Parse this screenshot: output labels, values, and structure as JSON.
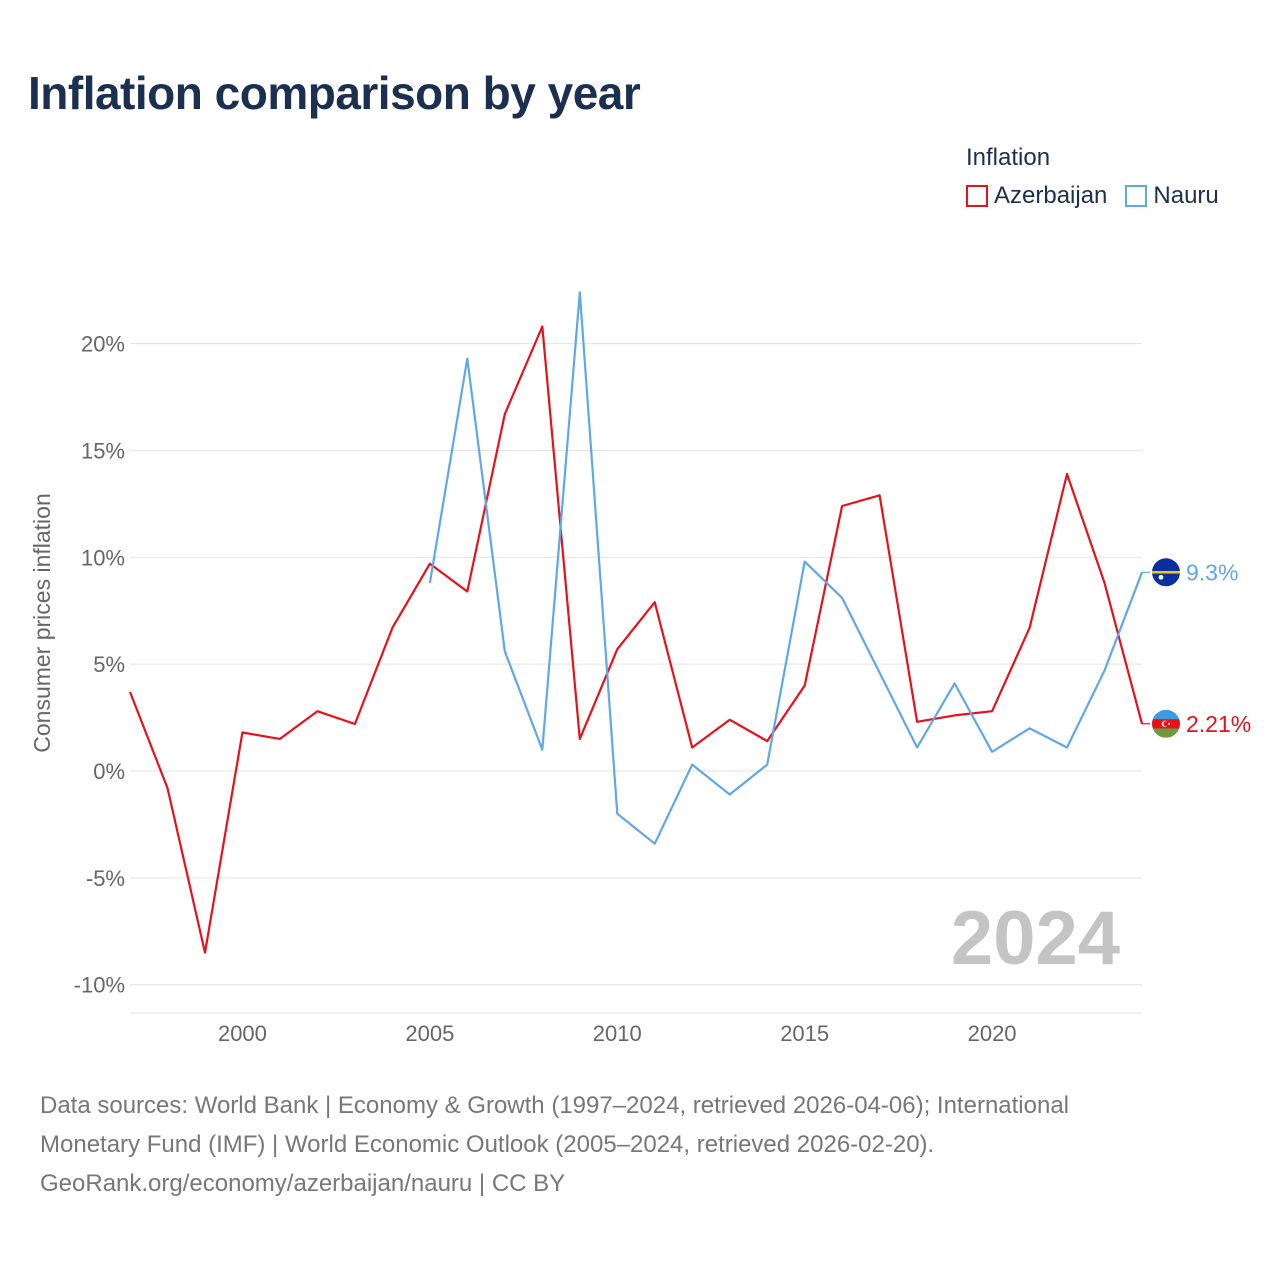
{
  "title": "Inflation comparison by year",
  "legend": {
    "title": "Inflation",
    "items": [
      {
        "label": "Azerbaijan",
        "color": "#e8111a"
      },
      {
        "label": "Nauru",
        "color": "#5fa8e8"
      }
    ]
  },
  "chart_data": {
    "type": "line",
    "ylabel": "Consumer prices inflation",
    "xlabel": "",
    "ylim": [
      -10,
      20
    ],
    "yticks": [
      -10,
      -5,
      0,
      5,
      10,
      15,
      20
    ],
    "ytick_labels": [
      "-10%",
      "-5%",
      "0%",
      "5%",
      "10%",
      "15%",
      "20%"
    ],
    "xlim": [
      1997,
      2024
    ],
    "xticks": [
      2000,
      2005,
      2010,
      2015,
      2020
    ],
    "xtick_labels": [
      "2000",
      "2005",
      "2010",
      "2015",
      "2020"
    ],
    "highlight_year": "2024",
    "series": [
      {
        "name": "Azerbaijan",
        "color": "#e8111a",
        "x": [
          1997,
          1998,
          1999,
          2000,
          2001,
          2002,
          2003,
          2004,
          2005,
          2006,
          2007,
          2008,
          2009,
          2010,
          2011,
          2012,
          2013,
          2014,
          2015,
          2016,
          2017,
          2018,
          2019,
          2020,
          2021,
          2022,
          2023,
          2024
        ],
        "values": [
          3.7,
          -0.8,
          -8.5,
          1.8,
          1.5,
          2.8,
          2.2,
          6.7,
          9.7,
          8.4,
          16.7,
          20.8,
          1.5,
          5.7,
          7.9,
          1.1,
          2.4,
          1.4,
          4.0,
          12.4,
          12.9,
          2.3,
          2.6,
          2.8,
          6.7,
          13.9,
          8.8,
          2.21
        ],
        "end_label": "2.21%"
      },
      {
        "name": "Nauru",
        "color": "#5fa8e8",
        "x": [
          2005,
          2006,
          2007,
          2008,
          2009,
          2010,
          2011,
          2012,
          2013,
          2014,
          2015,
          2016,
          2017,
          2018,
          2019,
          2020,
          2021,
          2022,
          2023,
          2024
        ],
        "values": [
          8.8,
          19.3,
          5.6,
          1.0,
          22.4,
          -2.0,
          -3.4,
          0.3,
          -1.1,
          0.3,
          9.8,
          8.1,
          4.6,
          1.1,
          4.1,
          0.9,
          2.0,
          1.1,
          4.7,
          9.3
        ],
        "end_label": "9.3%"
      }
    ]
  },
  "footer": {
    "line1": "Data sources: World Bank | Economy & Growth (1997–2024, retrieved 2026-04-06); International",
    "line2": "Monetary Fund (IMF) | World Economic Outlook (2005–2024, retrieved 2026-02-20).",
    "line3": "GeoRank.org/economy/azerbaijan/nauru | CC BY"
  }
}
